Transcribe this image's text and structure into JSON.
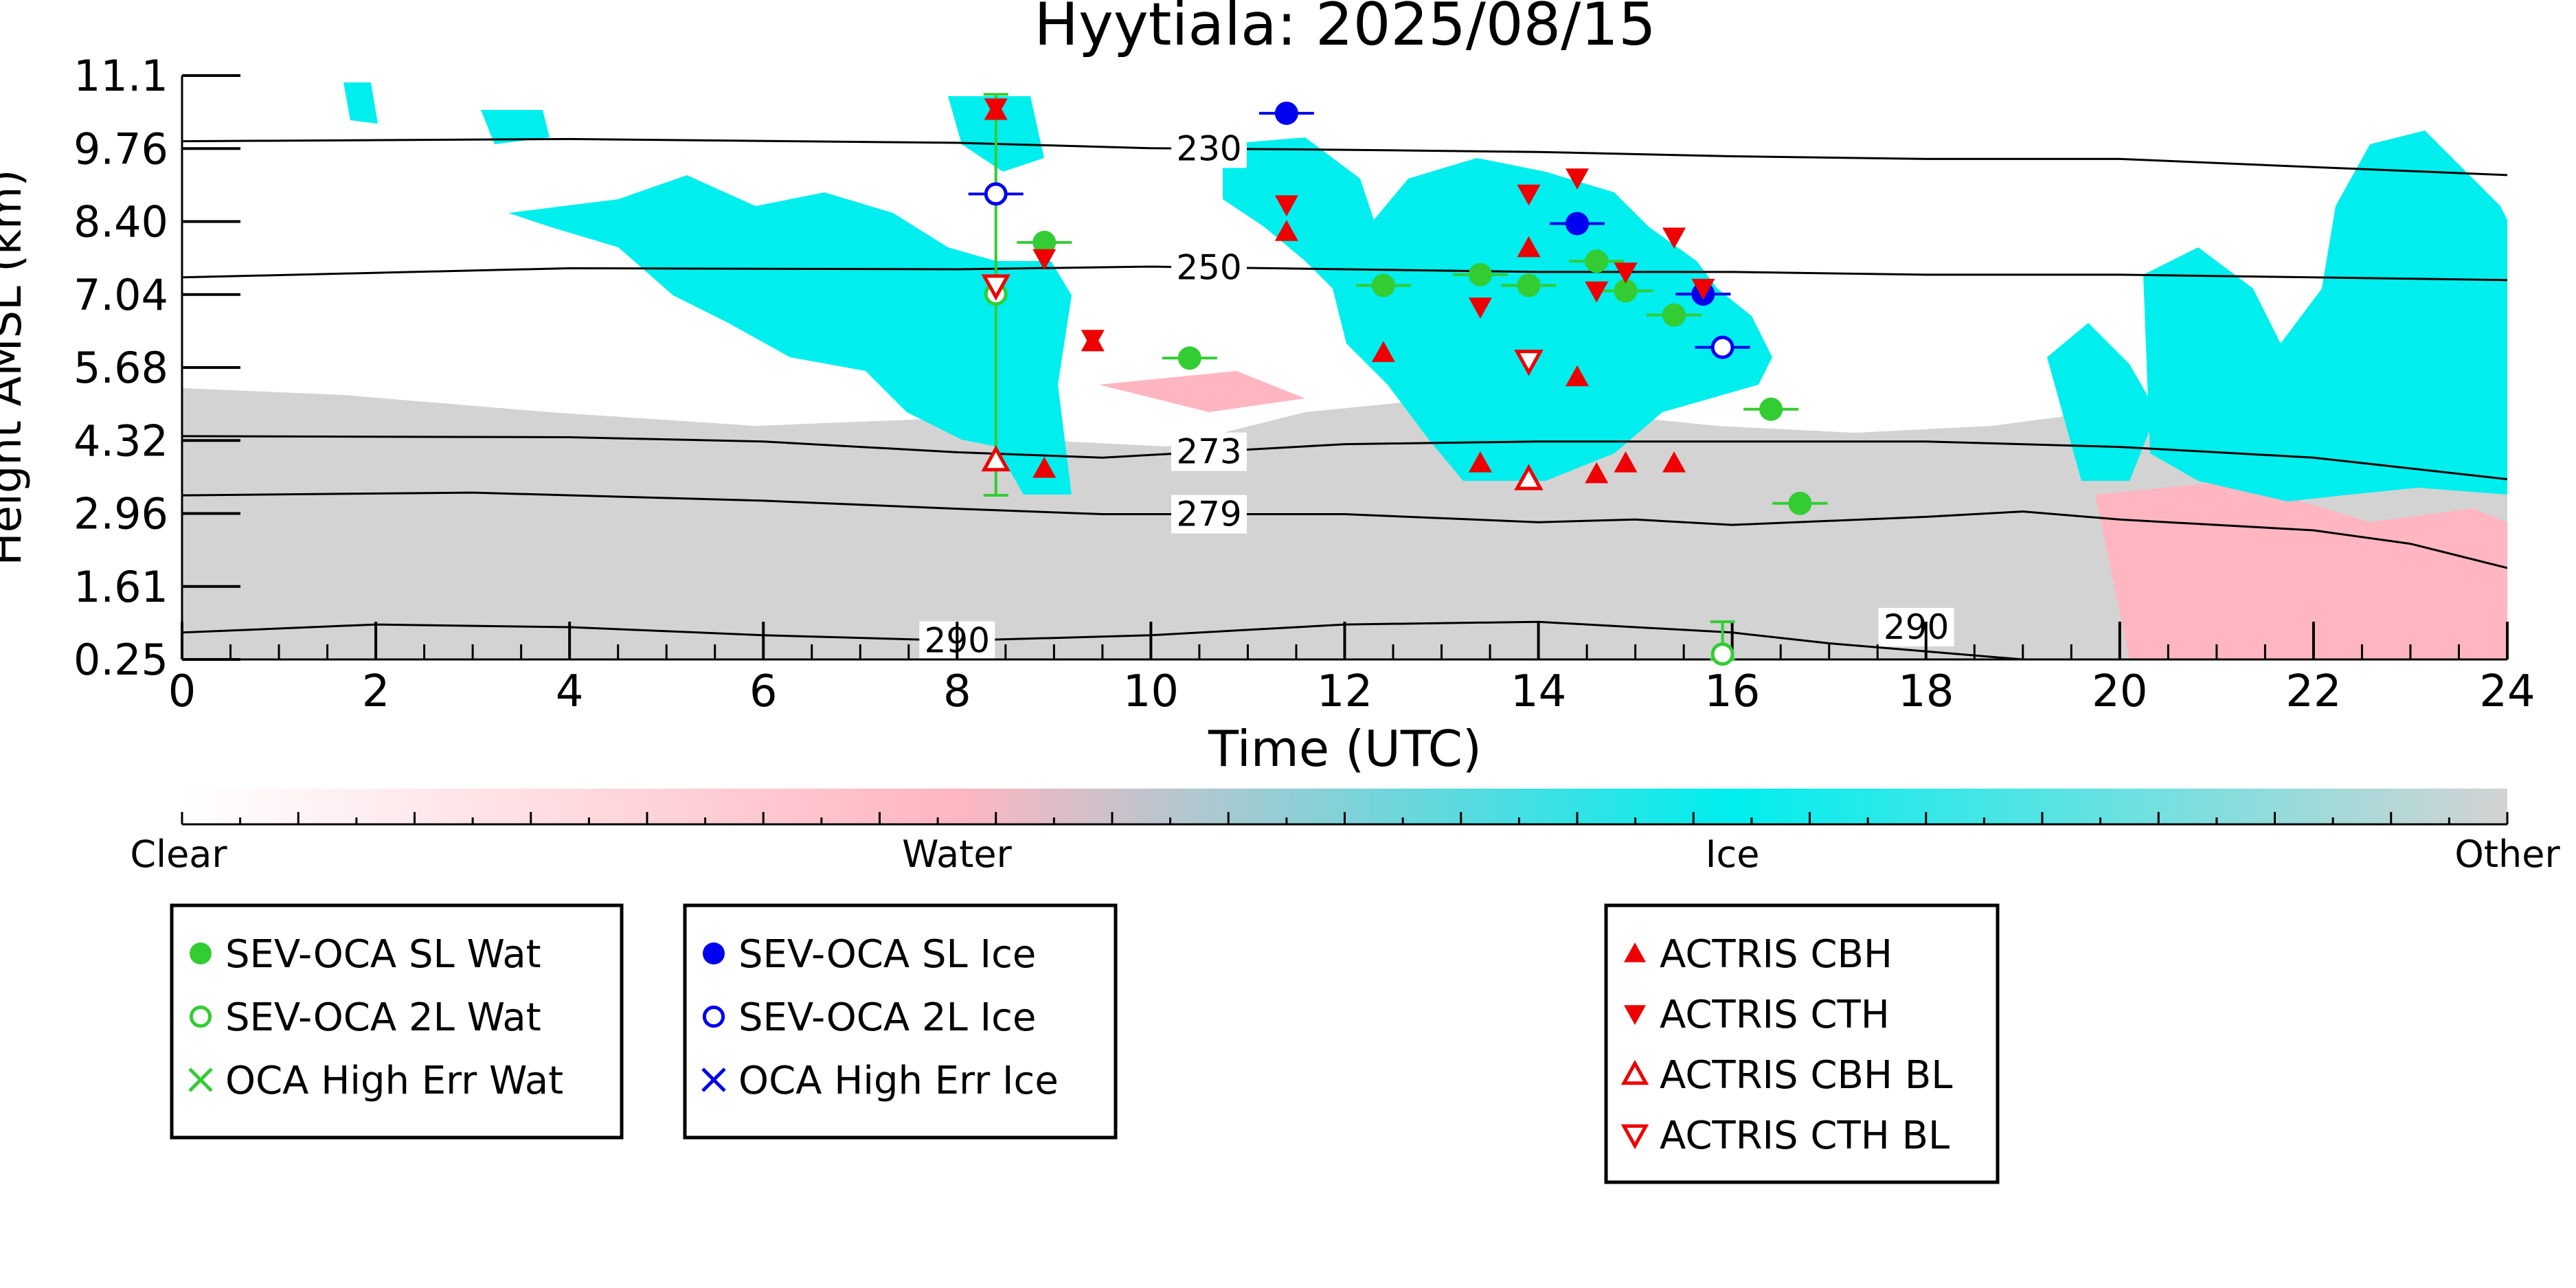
{
  "chart_data": {
    "type": "scatter",
    "title": "Hyytiala: 2025/08/15",
    "xlabel": "Time (UTC)",
    "ylabel": "Height AMSL (km)",
    "xlim": [
      0,
      24
    ],
    "ylim": [
      0.25,
      11.1
    ],
    "x_ticks": [
      0,
      2,
      4,
      6,
      8,
      10,
      12,
      14,
      16,
      18,
      20,
      22,
      24
    ],
    "y_ticks": [
      "0.25",
      "1.61",
      "2.96",
      "4.32",
      "5.68",
      "7.04",
      "8.40",
      "9.76",
      "11.1"
    ],
    "colorbar": {
      "labels": [
        "Clear",
        "Water",
        "Ice",
        "Other"
      ],
      "colors": {
        "clear": "#ffffff",
        "water": "#ffb6c1",
        "ice": "#00eeee",
        "other": "#d3d3d3"
      }
    },
    "contours": [
      {
        "label": "230",
        "points": [
          [
            0,
            9.88
          ],
          [
            4,
            9.92
          ],
          [
            8,
            9.85
          ],
          [
            10,
            9.75
          ],
          [
            12,
            9.72
          ],
          [
            14,
            9.68
          ],
          [
            16,
            9.6
          ],
          [
            18,
            9.55
          ],
          [
            20,
            9.55
          ],
          [
            22,
            9.4
          ],
          [
            24,
            9.25
          ]
        ]
      },
      {
        "label": "250",
        "points": [
          [
            0,
            7.35
          ],
          [
            4,
            7.52
          ],
          [
            8,
            7.5
          ],
          [
            10,
            7.55
          ],
          [
            12,
            7.5
          ],
          [
            14,
            7.45
          ],
          [
            16,
            7.45
          ],
          [
            18,
            7.4
          ],
          [
            20,
            7.4
          ],
          [
            22,
            7.35
          ],
          [
            24,
            7.3
          ]
        ]
      },
      {
        "label": "273",
        "points": [
          [
            0,
            4.4
          ],
          [
            4,
            4.38
          ],
          [
            6,
            4.3
          ],
          [
            8,
            4.1
          ],
          [
            9.5,
            4.0
          ],
          [
            12,
            4.25
          ],
          [
            14,
            4.3
          ],
          [
            16,
            4.3
          ],
          [
            18,
            4.3
          ],
          [
            20,
            4.2
          ],
          [
            22,
            4.0
          ],
          [
            24,
            3.6
          ]
        ]
      },
      {
        "label": "279",
        "points": [
          [
            0,
            3.3
          ],
          [
            3,
            3.35
          ],
          [
            6,
            3.2
          ],
          [
            8,
            3.05
          ],
          [
            9.5,
            2.95
          ],
          [
            12,
            2.95
          ],
          [
            14,
            2.8
          ],
          [
            15,
            2.85
          ],
          [
            16,
            2.75
          ],
          [
            18,
            2.9
          ],
          [
            19,
            3.0
          ],
          [
            20,
            2.85
          ],
          [
            22,
            2.65
          ],
          [
            23,
            2.4
          ],
          [
            24,
            1.95
          ]
        ]
      },
      {
        "label": "290",
        "points": [
          [
            0,
            0.75
          ],
          [
            2,
            0.9
          ],
          [
            4,
            0.85
          ],
          [
            6,
            0.7
          ],
          [
            8,
            0.6
          ],
          [
            10,
            0.7
          ],
          [
            12,
            0.9
          ],
          [
            14,
            0.95
          ],
          [
            16,
            0.75
          ],
          [
            17,
            0.55
          ],
          [
            18,
            0.4
          ],
          [
            19,
            0.25
          ]
        ]
      }
    ],
    "series": [
      {
        "name": "SEV-OCA SL Wat",
        "color": "#33cc33",
        "marker": "filled-circle",
        "points": [
          [
            8.9,
            8.0
          ],
          [
            10.4,
            5.85
          ],
          [
            12.4,
            7.2
          ],
          [
            13.4,
            7.4
          ],
          [
            13.9,
            7.2
          ],
          [
            14.6,
            7.65
          ],
          [
            14.9,
            7.1
          ],
          [
            15.4,
            6.65
          ],
          [
            16.4,
            4.9
          ],
          [
            16.7,
            3.15
          ]
        ]
      },
      {
        "name": "SEV-OCA 2L Wat",
        "color": "#33cc33",
        "marker": "open-circle",
        "points": [
          [
            8.4,
            7.04,
            3.3,
            10.75
          ],
          [
            15.9,
            0.35,
            0.25,
            0.95
          ]
        ]
      },
      {
        "name": "OCA High Err Wat",
        "color": "#33cc33",
        "marker": "cross",
        "points": []
      },
      {
        "name": "SEV-OCA SL Ice",
        "color": "#0000ee",
        "marker": "filled-circle",
        "points": [
          [
            11.4,
            10.4
          ],
          [
            14.4,
            8.35
          ],
          [
            15.7,
            7.04
          ]
        ]
      },
      {
        "name": "SEV-OCA 2L Ice",
        "color": "#0000ee",
        "marker": "open-circle",
        "points": [
          [
            8.4,
            8.9
          ],
          [
            15.9,
            6.05
          ]
        ]
      },
      {
        "name": "OCA High Err Ice",
        "color": "#0000ee",
        "marker": "cross",
        "points": []
      },
      {
        "name": "ACTRIS CBH",
        "color": "#ee0000",
        "marker": "filled-triangle-up",
        "points": [
          [
            8.4,
            10.45
          ],
          [
            8.9,
            3.8
          ],
          [
            9.4,
            6.15
          ],
          [
            11.4,
            8.2
          ],
          [
            12.4,
            5.95
          ],
          [
            13.4,
            3.9
          ],
          [
            13.9,
            7.9
          ],
          [
            14.4,
            5.5
          ],
          [
            14.6,
            3.7
          ],
          [
            14.9,
            3.9
          ],
          [
            15.4,
            3.9
          ]
        ]
      },
      {
        "name": "ACTRIS CTH",
        "color": "#ee0000",
        "marker": "filled-triangle-down",
        "points": [
          [
            8.4,
            10.5
          ],
          [
            8.9,
            7.7
          ],
          [
            9.4,
            6.2
          ],
          [
            11.4,
            8.7
          ],
          [
            13.4,
            6.8
          ],
          [
            13.9,
            8.9
          ],
          [
            14.4,
            9.2
          ],
          [
            14.6,
            7.1
          ],
          [
            14.9,
            7.45
          ],
          [
            15.4,
            8.1
          ],
          [
            15.7,
            7.15
          ]
        ]
      },
      {
        "name": "ACTRIS CBH BL",
        "color": "#ee0000",
        "marker": "open-triangle-up",
        "points": [
          [
            8.4,
            3.95
          ],
          [
            13.9,
            3.6
          ]
        ]
      },
      {
        "name": "ACTRIS CTH BL",
        "color": "#ee0000",
        "marker": "open-triangle-down",
        "points": [
          [
            8.4,
            7.2
          ],
          [
            13.9,
            5.8
          ]
        ]
      }
    ],
    "legend_groups": [
      [
        "SEV-OCA SL Wat",
        "SEV-OCA 2L Wat",
        "OCA High Err Wat"
      ],
      [
        "SEV-OCA SL Ice",
        "SEV-OCA 2L Ice",
        "OCA High Err Ice"
      ],
      [
        "ACTRIS CBH",
        "ACTRIS CTH",
        "ACTRIS CBH BL",
        "ACTRIS CTH BL"
      ]
    ]
  }
}
